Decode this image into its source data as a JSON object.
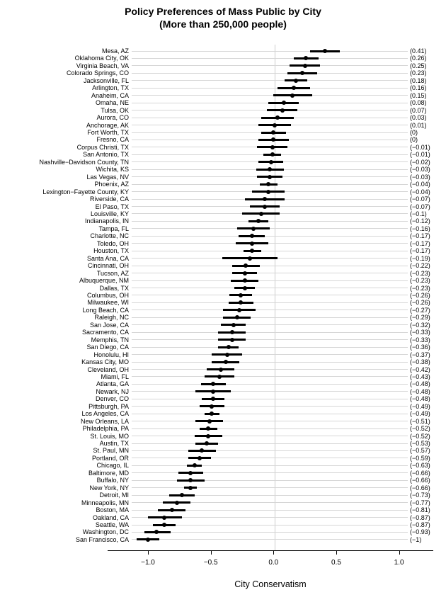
{
  "title": "Policy Preferences of Mass Public by City",
  "subtitle": "(More than 250,000 people)",
  "colors": {
    "ink": "#000000",
    "grid": "#d6d6d6",
    "zero_line": "#cccccc",
    "background": "#ffffff"
  },
  "chart_data": {
    "type": "scatter",
    "subtype": "horizontal-dot-with-ci",
    "title": "Policy Preferences of Mass Public by City",
    "subtitle": "(More than 250,000 people)",
    "xlabel": "City Conservatism",
    "xlim": [
      -1.13,
      1.07
    ],
    "grid": true,
    "zero_reference_line": 0.0,
    "x_ticks": [
      {
        "value": -1.0,
        "label": "−1.0"
      },
      {
        "value": -0.5,
        "label": "−0.5"
      },
      {
        "value": 0.0,
        "label": "0.0"
      },
      {
        "value": 0.5,
        "label": "0.5"
      },
      {
        "value": 1.0,
        "label": "1.0"
      }
    ],
    "points": [
      {
        "city": "Mesa, AZ",
        "estimate": 0.41,
        "ci_low": 0.29,
        "ci_high": 0.53,
        "value_label": "(0.41)"
      },
      {
        "city": "Oklahoma City, OK",
        "estimate": 0.26,
        "ci_low": 0.16,
        "ci_high": 0.36,
        "value_label": "(0.26)"
      },
      {
        "city": "Virginia Beach, VA",
        "estimate": 0.25,
        "ci_low": 0.13,
        "ci_high": 0.37,
        "value_label": "(0.25)"
      },
      {
        "city": "Colorado Springs, CO",
        "estimate": 0.23,
        "ci_low": 0.11,
        "ci_high": 0.35,
        "value_label": "(0.23)"
      },
      {
        "city": "Jacksonville, FL",
        "estimate": 0.18,
        "ci_low": 0.09,
        "ci_high": 0.27,
        "value_label": "(0.18)"
      },
      {
        "city": "Arlington, TX",
        "estimate": 0.16,
        "ci_low": 0.03,
        "ci_high": 0.29,
        "value_label": "(0.16)"
      },
      {
        "city": "Anaheim, CA",
        "estimate": 0.15,
        "ci_low": 0.0,
        "ci_high": 0.31,
        "value_label": "(0.15)"
      },
      {
        "city": "Omaha, NE",
        "estimate": 0.08,
        "ci_low": -0.04,
        "ci_high": 0.2,
        "value_label": "(0.08)"
      },
      {
        "city": "Tulsa, OK",
        "estimate": 0.07,
        "ci_low": -0.05,
        "ci_high": 0.19,
        "value_label": "(0.07)"
      },
      {
        "city": "Aurora, CO",
        "estimate": 0.03,
        "ci_low": -0.1,
        "ci_high": 0.16,
        "value_label": "(0.03)"
      },
      {
        "city": "Anchorage, AK",
        "estimate": 0.01,
        "ci_low": -0.12,
        "ci_high": 0.14,
        "value_label": "(0.01)"
      },
      {
        "city": "Fort Worth, TX",
        "estimate": 0.0,
        "ci_low": -0.1,
        "ci_high": 0.1,
        "value_label": "(0)"
      },
      {
        "city": "Fresno, CA",
        "estimate": 0.0,
        "ci_low": -0.12,
        "ci_high": 0.12,
        "value_label": "(0)"
      },
      {
        "city": "Corpus Christi, TX",
        "estimate": -0.01,
        "ci_low": -0.13,
        "ci_high": 0.11,
        "value_label": "(−0.01)"
      },
      {
        "city": "San Antonio, TX",
        "estimate": -0.01,
        "ci_low": -0.08,
        "ci_high": 0.06,
        "value_label": "(−0.01)"
      },
      {
        "city": "Nashville−Davidson County, TN",
        "estimate": -0.02,
        "ci_low": -0.12,
        "ci_high": 0.08,
        "value_label": "(−0.02)"
      },
      {
        "city": "Wichita, KS",
        "estimate": -0.03,
        "ci_low": -0.14,
        "ci_high": 0.08,
        "value_label": "(−0.03)"
      },
      {
        "city": "Las Vegas, NV",
        "estimate": -0.03,
        "ci_low": -0.13,
        "ci_high": 0.07,
        "value_label": "(−0.03)"
      },
      {
        "city": "Phoenix, AZ",
        "estimate": -0.04,
        "ci_low": -0.11,
        "ci_high": 0.03,
        "value_label": "(−0.04)"
      },
      {
        "city": "Lexington−Fayette County, KY",
        "estimate": -0.04,
        "ci_low": -0.17,
        "ci_high": 0.09,
        "value_label": "(−0.04)"
      },
      {
        "city": "Riverside, CA",
        "estimate": -0.07,
        "ci_low": -0.23,
        "ci_high": 0.09,
        "value_label": "(−0.07)"
      },
      {
        "city": "El Paso, TX",
        "estimate": -0.07,
        "ci_low": -0.19,
        "ci_high": 0.05,
        "value_label": "(−0.07)"
      },
      {
        "city": "Louisville, KY",
        "estimate": -0.1,
        "ci_low": -0.25,
        "ci_high": 0.05,
        "value_label": "(−0.1)"
      },
      {
        "city": "Indianapolis, IN",
        "estimate": -0.12,
        "ci_low": -0.2,
        "ci_high": -0.04,
        "value_label": "(−0.12)"
      },
      {
        "city": "Tampa, FL",
        "estimate": -0.16,
        "ci_low": -0.29,
        "ci_high": -0.03,
        "value_label": "(−0.16)"
      },
      {
        "city": "Charlotte, NC",
        "estimate": -0.17,
        "ci_low": -0.28,
        "ci_high": -0.07,
        "value_label": "(−0.17)"
      },
      {
        "city": "Toledo, OH",
        "estimate": -0.17,
        "ci_low": -0.3,
        "ci_high": -0.04,
        "value_label": "(−0.17)"
      },
      {
        "city": "Houston, TX",
        "estimate": -0.17,
        "ci_low": -0.24,
        "ci_high": -0.1,
        "value_label": "(−0.17)"
      },
      {
        "city": "Santa Ana, CA",
        "estimate": -0.19,
        "ci_low": -0.41,
        "ci_high": 0.03,
        "value_label": "(−0.19)"
      },
      {
        "city": "Cincinnati, OH",
        "estimate": -0.22,
        "ci_low": -0.33,
        "ci_high": -0.11,
        "value_label": "(−0.22)"
      },
      {
        "city": "Tucson, AZ",
        "estimate": -0.23,
        "ci_low": -0.33,
        "ci_high": -0.13,
        "value_label": "(−0.23)"
      },
      {
        "city": "Albuquerque, NM",
        "estimate": -0.23,
        "ci_low": -0.34,
        "ci_high": -0.12,
        "value_label": "(−0.23)"
      },
      {
        "city": "Dallas, TX",
        "estimate": -0.23,
        "ci_low": -0.31,
        "ci_high": -0.15,
        "value_label": "(−0.23)"
      },
      {
        "city": "Columbus, OH",
        "estimate": -0.26,
        "ci_low": -0.35,
        "ci_high": -0.17,
        "value_label": "(−0.26)"
      },
      {
        "city": "Milwaukee, WI",
        "estimate": -0.26,
        "ci_low": -0.36,
        "ci_high": -0.16,
        "value_label": "(−0.26)"
      },
      {
        "city": "Long Beach, CA",
        "estimate": -0.27,
        "ci_low": -0.4,
        "ci_high": -0.14,
        "value_label": "(−0.27)"
      },
      {
        "city": "Raleigh, NC",
        "estimate": -0.29,
        "ci_low": -0.4,
        "ci_high": -0.18,
        "value_label": "(−0.29)"
      },
      {
        "city": "San Jose, CA",
        "estimate": -0.32,
        "ci_low": -0.42,
        "ci_high": -0.22,
        "value_label": "(−0.32)"
      },
      {
        "city": "Sacramento, CA",
        "estimate": -0.33,
        "ci_low": -0.44,
        "ci_high": -0.22,
        "value_label": "(−0.33)"
      },
      {
        "city": "Memphis, TN",
        "estimate": -0.33,
        "ci_low": -0.44,
        "ci_high": -0.22,
        "value_label": "(−0.33)"
      },
      {
        "city": "San Diego, CA",
        "estimate": -0.36,
        "ci_low": -0.44,
        "ci_high": -0.28,
        "value_label": "(−0.36)"
      },
      {
        "city": "Honolulu, HI",
        "estimate": -0.37,
        "ci_low": -0.49,
        "ci_high": -0.25,
        "value_label": "(−0.37)"
      },
      {
        "city": "Kansas City, MO",
        "estimate": -0.38,
        "ci_low": -0.49,
        "ci_high": -0.27,
        "value_label": "(−0.38)"
      },
      {
        "city": "Cleveland, OH",
        "estimate": -0.42,
        "ci_low": -0.53,
        "ci_high": -0.31,
        "value_label": "(−0.42)"
      },
      {
        "city": "Miami, FL",
        "estimate": -0.43,
        "ci_low": -0.55,
        "ci_high": -0.31,
        "value_label": "(−0.43)"
      },
      {
        "city": "Atlanta, GA",
        "estimate": -0.48,
        "ci_low": -0.58,
        "ci_high": -0.38,
        "value_label": "(−0.48)"
      },
      {
        "city": "Newark, NJ",
        "estimate": -0.48,
        "ci_low": -0.62,
        "ci_high": -0.34,
        "value_label": "(−0.48)"
      },
      {
        "city": "Denver, CO",
        "estimate": -0.48,
        "ci_low": -0.57,
        "ci_high": -0.39,
        "value_label": "(−0.48)"
      },
      {
        "city": "Pittsburgh, PA",
        "estimate": -0.49,
        "ci_low": -0.59,
        "ci_high": -0.39,
        "value_label": "(−0.49)"
      },
      {
        "city": "Los Angeles, CA",
        "estimate": -0.49,
        "ci_low": -0.55,
        "ci_high": -0.43,
        "value_label": "(−0.49)"
      },
      {
        "city": "New Orleans, LA",
        "estimate": -0.51,
        "ci_low": -0.62,
        "ci_high": -0.4,
        "value_label": "(−0.51)"
      },
      {
        "city": "Philadelphia, PA",
        "estimate": -0.52,
        "ci_low": -0.59,
        "ci_high": -0.45,
        "value_label": "(−0.52)"
      },
      {
        "city": "St. Louis, MO",
        "estimate": -0.52,
        "ci_low": -0.63,
        "ci_high": -0.41,
        "value_label": "(−0.52)"
      },
      {
        "city": "Austin, TX",
        "estimate": -0.53,
        "ci_low": -0.62,
        "ci_high": -0.44,
        "value_label": "(−0.53)"
      },
      {
        "city": "St. Paul, MN",
        "estimate": -0.57,
        "ci_low": -0.68,
        "ci_high": -0.46,
        "value_label": "(−0.57)"
      },
      {
        "city": "Portland, OR",
        "estimate": -0.59,
        "ci_low": -0.68,
        "ci_high": -0.5,
        "value_label": "(−0.59)"
      },
      {
        "city": "Chicago, IL",
        "estimate": -0.63,
        "ci_low": -0.69,
        "ci_high": -0.57,
        "value_label": "(−0.63)"
      },
      {
        "city": "Baltimore, MD",
        "estimate": -0.66,
        "ci_low": -0.76,
        "ci_high": -0.56,
        "value_label": "(−0.66)"
      },
      {
        "city": "Buffalo, NY",
        "estimate": -0.66,
        "ci_low": -0.77,
        "ci_high": -0.55,
        "value_label": "(−0.66)"
      },
      {
        "city": "New York, NY",
        "estimate": -0.66,
        "ci_low": -0.71,
        "ci_high": -0.61,
        "value_label": "(−0.66)"
      },
      {
        "city": "Detroit, MI",
        "estimate": -0.73,
        "ci_low": -0.83,
        "ci_high": -0.63,
        "value_label": "(−0.73)"
      },
      {
        "city": "Minneapolis, MN",
        "estimate": -0.77,
        "ci_low": -0.88,
        "ci_high": -0.66,
        "value_label": "(−0.77)"
      },
      {
        "city": "Boston, MA",
        "estimate": -0.81,
        "ci_low": -0.92,
        "ci_high": -0.7,
        "value_label": "(−0.81)"
      },
      {
        "city": "Oakland, CA",
        "estimate": -0.87,
        "ci_low": -1.0,
        "ci_high": -0.73,
        "value_label": "(−0.87)"
      },
      {
        "city": "Seattle, WA",
        "estimate": -0.87,
        "ci_low": -0.96,
        "ci_high": -0.78,
        "value_label": "(−0.87)"
      },
      {
        "city": "Washington, DC",
        "estimate": -0.93,
        "ci_low": -1.03,
        "ci_high": -0.82,
        "value_label": "(−0.93)"
      },
      {
        "city": "San Francisco, CA",
        "estimate": -1.0,
        "ci_low": -1.09,
        "ci_high": -0.91,
        "value_label": "(−1)"
      }
    ]
  }
}
